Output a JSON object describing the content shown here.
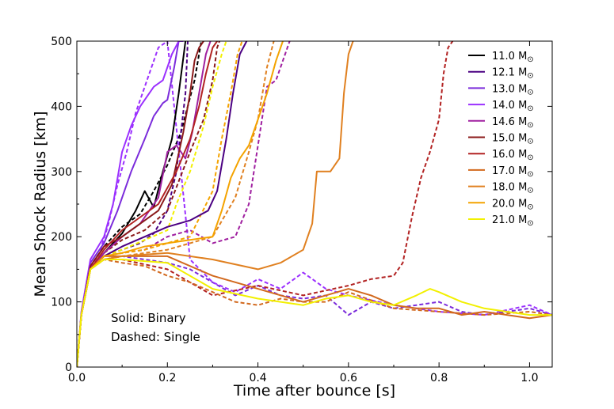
{
  "chart_data": {
    "type": "line",
    "xlabel": "Time after bounce [s]",
    "ylabel": "Mean Shock Radius [km]",
    "xlim": [
      0.0,
      1.05
    ],
    "ylim": [
      0,
      500
    ],
    "xticks": [
      0.0,
      0.2,
      0.4,
      0.6,
      0.8,
      1.0
    ],
    "xtick_labels": [
      "0.0",
      "0.2",
      "0.4",
      "0.6",
      "0.8",
      "1.0"
    ],
    "yticks": [
      0,
      100,
      200,
      300,
      400,
      500
    ],
    "ytick_labels": [
      "0",
      "100",
      "200",
      "300",
      "400",
      "500"
    ],
    "grid": false,
    "legend_position": "top-right",
    "legend_unit": "M",
    "legend_unit_symbol": "⊙",
    "annotations": [
      "Solid: Binary",
      "Dashed: Single"
    ],
    "series": [
      {
        "name": "11.0",
        "color": "#000000",
        "style": "solid",
        "x": [
          0,
          0.01,
          0.03,
          0.06,
          0.1,
          0.13,
          0.15,
          0.17,
          0.19,
          0.21,
          0.225,
          0.24
        ],
        "y": [
          0,
          80,
          150,
          175,
          205,
          240,
          270,
          245,
          300,
          350,
          420,
          500
        ]
      },
      {
        "name": "11.0",
        "color": "#000000",
        "style": "dashed",
        "x": [
          0,
          0.01,
          0.03,
          0.06,
          0.1,
          0.14,
          0.17,
          0.2,
          0.23,
          0.26,
          0.275
        ],
        "y": [
          0,
          82,
          155,
          185,
          215,
          235,
          270,
          310,
          360,
          440,
          500
        ]
      },
      {
        "name": "12.1",
        "color": "#4b0082",
        "style": "solid",
        "x": [
          0,
          0.01,
          0.03,
          0.06,
          0.1,
          0.15,
          0.2,
          0.25,
          0.29,
          0.31,
          0.33,
          0.345,
          0.36,
          0.375
        ],
        "y": [
          0,
          80,
          150,
          170,
          185,
          200,
          215,
          225,
          240,
          270,
          350,
          420,
          480,
          500
        ]
      },
      {
        "name": "12.1",
        "color": "#4b0082",
        "style": "dashed",
        "x": [
          0,
          0.01,
          0.03,
          0.06,
          0.1,
          0.14,
          0.17,
          0.2,
          0.22,
          0.24,
          0.245
        ],
        "y": [
          0,
          80,
          150,
          170,
          180,
          190,
          205,
          240,
          300,
          420,
          500
        ]
      },
      {
        "name": "13.0",
        "color": "#7b2cdb",
        "style": "solid",
        "x": [
          0,
          0.01,
          0.03,
          0.06,
          0.09,
          0.12,
          0.15,
          0.17,
          0.19,
          0.2,
          0.215,
          0.225,
          0.235
        ],
        "y": [
          0,
          80,
          160,
          190,
          240,
          300,
          350,
          385,
          405,
          410,
          460,
          500,
          500
        ]
      },
      {
        "name": "13.0",
        "color": "#7b2cdb",
        "style": "dashed",
        "x": [
          0,
          0.01,
          0.03,
          0.06,
          0.1,
          0.15,
          0.2,
          0.25,
          0.3,
          0.35,
          0.4,
          0.45,
          0.5,
          0.55,
          0.6,
          0.65,
          0.7,
          0.75,
          0.8,
          0.85,
          0.9,
          0.95,
          1.0,
          1.05
        ],
        "y": [
          0,
          80,
          150,
          165,
          170,
          165,
          160,
          150,
          130,
          110,
          125,
          110,
          105,
          110,
          80,
          100,
          90,
          95,
          100,
          85,
          80,
          85,
          90,
          80
        ]
      },
      {
        "name": "14.0",
        "color": "#9b30ff",
        "style": "solid",
        "x": [
          0,
          0.01,
          0.03,
          0.06,
          0.08,
          0.1,
          0.12,
          0.14,
          0.17,
          0.19,
          0.21,
          0.225,
          0.235
        ],
        "y": [
          0,
          85,
          165,
          200,
          250,
          330,
          370,
          400,
          430,
          440,
          480,
          500,
          500
        ]
      },
      {
        "name": "14.0",
        "color": "#9b30ff",
        "style": "dashed",
        "x": [
          0,
          0.01,
          0.03,
          0.05,
          0.07,
          0.09,
          0.11,
          0.13,
          0.16,
          0.18,
          0.2,
          0.25,
          0.3,
          0.35,
          0.4,
          0.45,
          0.5,
          0.55,
          0.6,
          0.7,
          0.8,
          0.9,
          1.0,
          1.05
        ],
        "y": [
          0,
          80,
          150,
          175,
          220,
          280,
          330,
          390,
          450,
          490,
          500,
          165,
          130,
          115,
          135,
          120,
          145,
          120,
          110,
          95,
          85,
          80,
          95,
          80
        ]
      },
      {
        "name": "14.6",
        "color": "#a020a0",
        "style": "solid",
        "x": [
          0,
          0.01,
          0.03,
          0.06,
          0.1,
          0.14,
          0.18,
          0.2,
          0.22,
          0.24,
          0.255,
          0.27,
          0.285,
          0.295
        ],
        "y": [
          0,
          80,
          150,
          175,
          200,
          220,
          260,
          330,
          340,
          320,
          360,
          420,
          480,
          500
        ]
      },
      {
        "name": "14.6",
        "color": "#a020a0",
        "style": "dashed",
        "x": [
          0,
          0.01,
          0.03,
          0.06,
          0.1,
          0.15,
          0.2,
          0.25,
          0.3,
          0.35,
          0.38,
          0.4,
          0.42,
          0.44,
          0.46,
          0.47
        ],
        "y": [
          0,
          80,
          150,
          170,
          175,
          180,
          200,
          210,
          190,
          200,
          250,
          340,
          430,
          440,
          480,
          500
        ]
      },
      {
        "name": "15.0",
        "color": "#8b1a1a",
        "style": "solid",
        "x": [
          0,
          0.01,
          0.03,
          0.06,
          0.1,
          0.14,
          0.18,
          0.21,
          0.235,
          0.25,
          0.26,
          0.27,
          0.28
        ],
        "y": [
          0,
          80,
          155,
          185,
          200,
          220,
          240,
          280,
          360,
          420,
          470,
          490,
          500
        ]
      },
      {
        "name": "15.0",
        "color": "#8b1a1a",
        "style": "dashed",
        "x": [
          0,
          0.01,
          0.03,
          0.06,
          0.1,
          0.15,
          0.2,
          0.25,
          0.28,
          0.3,
          0.31,
          0.315
        ],
        "y": [
          0,
          80,
          150,
          175,
          195,
          210,
          240,
          330,
          380,
          440,
          490,
          500
        ]
      },
      {
        "name": "16.0",
        "color": "#b22222",
        "style": "solid",
        "x": [
          0,
          0.01,
          0.03,
          0.06,
          0.1,
          0.14,
          0.18,
          0.22,
          0.25,
          0.27,
          0.285,
          0.3,
          0.31
        ],
        "y": [
          0,
          80,
          150,
          180,
          210,
          230,
          250,
          300,
          350,
          400,
          450,
          490,
          500
        ]
      },
      {
        "name": "16.0",
        "color": "#b22222",
        "style": "dashed",
        "x": [
          0,
          0.01,
          0.03,
          0.06,
          0.1,
          0.2,
          0.3,
          0.4,
          0.5,
          0.6,
          0.65,
          0.7,
          0.72,
          0.74,
          0.76,
          0.78,
          0.8,
          0.81,
          0.82,
          0.83
        ],
        "y": [
          0,
          80,
          150,
          165,
          165,
          150,
          110,
          125,
          110,
          125,
          135,
          140,
          160,
          230,
          290,
          330,
          380,
          450,
          490,
          500
        ]
      },
      {
        "name": "17.0",
        "color": "#d2691e",
        "style": "solid",
        "x": [
          0,
          0.01,
          0.03,
          0.06,
          0.1,
          0.2,
          0.3,
          0.4,
          0.5,
          0.55,
          0.6,
          0.65,
          0.7,
          0.75,
          0.8,
          0.85,
          0.9,
          0.95,
          1.0,
          1.05
        ],
        "y": [
          0,
          80,
          150,
          170,
          170,
          170,
          140,
          120,
          100,
          110,
          120,
          110,
          95,
          90,
          90,
          80,
          85,
          80,
          75,
          80
        ]
      },
      {
        "name": "17.0",
        "color": "#d2691e",
        "style": "dashed",
        "x": [
          0,
          0.01,
          0.03,
          0.06,
          0.1,
          0.15,
          0.2,
          0.25,
          0.3,
          0.35,
          0.4,
          0.45,
          0.5,
          0.55,
          0.6,
          0.7,
          0.8,
          0.9,
          1.0,
          1.05
        ],
        "y": [
          0,
          80,
          150,
          165,
          160,
          155,
          140,
          130,
          115,
          100,
          95,
          105,
          100,
          100,
          115,
          90,
          85,
          80,
          85,
          80
        ]
      },
      {
        "name": "18.0",
        "color": "#e08020",
        "style": "solid",
        "x": [
          0,
          0.01,
          0.03,
          0.06,
          0.1,
          0.2,
          0.3,
          0.4,
          0.45,
          0.5,
          0.52,
          0.53,
          0.54,
          0.56,
          0.58,
          0.59,
          0.6,
          0.61
        ],
        "y": [
          0,
          80,
          150,
          165,
          170,
          175,
          165,
          150,
          160,
          180,
          220,
          300,
          300,
          300,
          320,
          420,
          480,
          500
        ]
      },
      {
        "name": "18.0",
        "color": "#e08020",
        "style": "dashed",
        "x": [
          0,
          0.01,
          0.03,
          0.06,
          0.1,
          0.2,
          0.25,
          0.3,
          0.35,
          0.38,
          0.4,
          0.42,
          0.435
        ],
        "y": [
          0,
          80,
          150,
          165,
          170,
          180,
          190,
          200,
          260,
          330,
          380,
          460,
          500
        ]
      },
      {
        "name": "20.0",
        "color": "#f4a300",
        "style": "solid",
        "x": [
          0,
          0.01,
          0.03,
          0.06,
          0.1,
          0.15,
          0.2,
          0.25,
          0.3,
          0.32,
          0.34,
          0.36,
          0.38,
          0.4,
          0.42,
          0.44,
          0.455
        ],
        "y": [
          0,
          80,
          150,
          170,
          175,
          185,
          190,
          195,
          200,
          240,
          290,
          320,
          340,
          380,
          420,
          470,
          500
        ]
      },
      {
        "name": "20.0",
        "color": "#f4a300",
        "style": "dashed",
        "x": [
          0,
          0.01,
          0.03,
          0.06,
          0.1,
          0.15,
          0.2,
          0.25,
          0.3,
          0.32,
          0.34,
          0.355,
          0.365
        ],
        "y": [
          0,
          80,
          150,
          170,
          175,
          180,
          190,
          200,
          270,
          350,
          420,
          480,
          500
        ]
      },
      {
        "name": "21.0",
        "color": "#f2f000",
        "style": "solid",
        "x": [
          0,
          0.01,
          0.03,
          0.06,
          0.1,
          0.2,
          0.3,
          0.4,
          0.5,
          0.55,
          0.6,
          0.65,
          0.7,
          0.75,
          0.78,
          0.8,
          0.85,
          0.9,
          0.95,
          1.0,
          1.05
        ],
        "y": [
          0,
          80,
          150,
          165,
          165,
          160,
          120,
          105,
          95,
          105,
          110,
          100,
          95,
          110,
          120,
          115,
          100,
          90,
          85,
          80,
          80
        ]
      },
      {
        "name": "21.0",
        "color": "#f2f000",
        "style": "dashed",
        "x": [
          0,
          0.01,
          0.03,
          0.06,
          0.1,
          0.15,
          0.2,
          0.22,
          0.25,
          0.28,
          0.3,
          0.32,
          0.33
        ],
        "y": [
          0,
          80,
          150,
          170,
          180,
          195,
          210,
          250,
          300,
          370,
          430,
          480,
          500
        ]
      }
    ]
  }
}
